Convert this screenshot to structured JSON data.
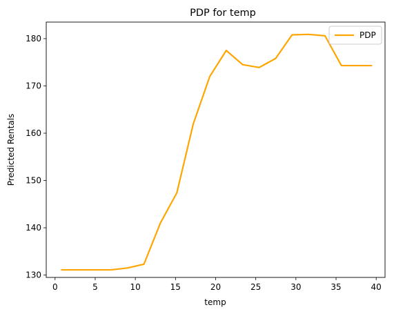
{
  "chart_data": {
    "type": "line",
    "title": "PDP for temp",
    "xlabel": "temp",
    "ylabel": "Predicted Rentals",
    "xlim": [
      -1.1,
      41.1
    ],
    "ylim": [
      129.5,
      183.5
    ],
    "xticks": [
      0,
      5,
      10,
      15,
      20,
      25,
      30,
      35,
      40
    ],
    "yticks": [
      130,
      140,
      150,
      160,
      170,
      180
    ],
    "grid": false,
    "legend": "top-right",
    "series": [
      {
        "name": "PDP",
        "color": "#ffa500",
        "x": [
          0.82,
          2.87,
          4.92,
          6.97,
          9.02,
          11.07,
          13.12,
          15.17,
          17.22,
          19.27,
          21.32,
          23.37,
          25.42,
          27.47,
          29.52,
          31.57,
          33.62,
          35.67,
          37.72,
          39.42
        ],
        "y": [
          131.1,
          131.1,
          131.1,
          131.1,
          131.5,
          132.3,
          141.0,
          147.4,
          162.0,
          172.0,
          177.5,
          174.5,
          173.9,
          175.8,
          180.8,
          180.9,
          180.6,
          174.3,
          174.3,
          174.3
        ]
      }
    ]
  }
}
